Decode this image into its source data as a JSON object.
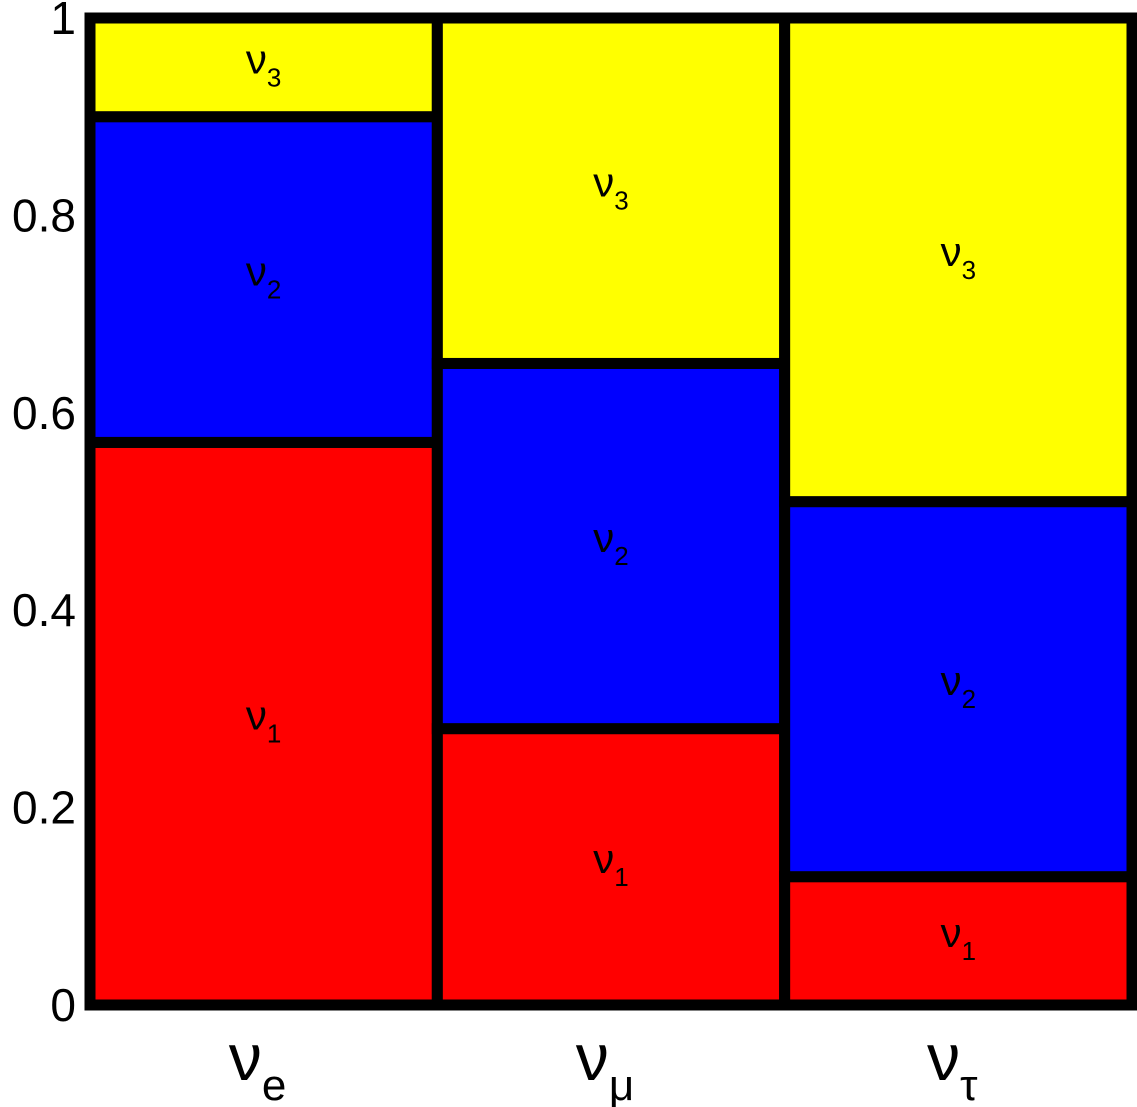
{
  "chart_data": {
    "type": "bar",
    "stacked": true,
    "title": "",
    "xlabel": "",
    "ylabel": "",
    "ylim": [
      0,
      1
    ],
    "yticks": [
      "0",
      "0.2",
      "0.4",
      "0.6",
      "0.8",
      "1"
    ],
    "ytick_values": [
      0,
      0.2,
      0.4,
      0.6,
      0.8,
      1
    ],
    "categories": [
      {
        "symbol": "ν",
        "sub": "e"
      },
      {
        "symbol": "ν",
        "sub": "μ"
      },
      {
        "symbol": "ν",
        "sub": "τ"
      }
    ],
    "series": [
      {
        "symbol": "ν",
        "sub": "1",
        "color": "#ff0000",
        "values": [
          0.57,
          0.28,
          0.13
        ]
      },
      {
        "symbol": "ν",
        "sub": "2",
        "color": "#0000ff",
        "values": [
          0.33,
          0.37,
          0.38
        ]
      },
      {
        "symbol": "ν",
        "sub": "3",
        "color": "#ffff00",
        "values": [
          0.1,
          0.35,
          0.49
        ]
      }
    ],
    "grid": false,
    "legend": "none",
    "border_color": "#000000"
  }
}
